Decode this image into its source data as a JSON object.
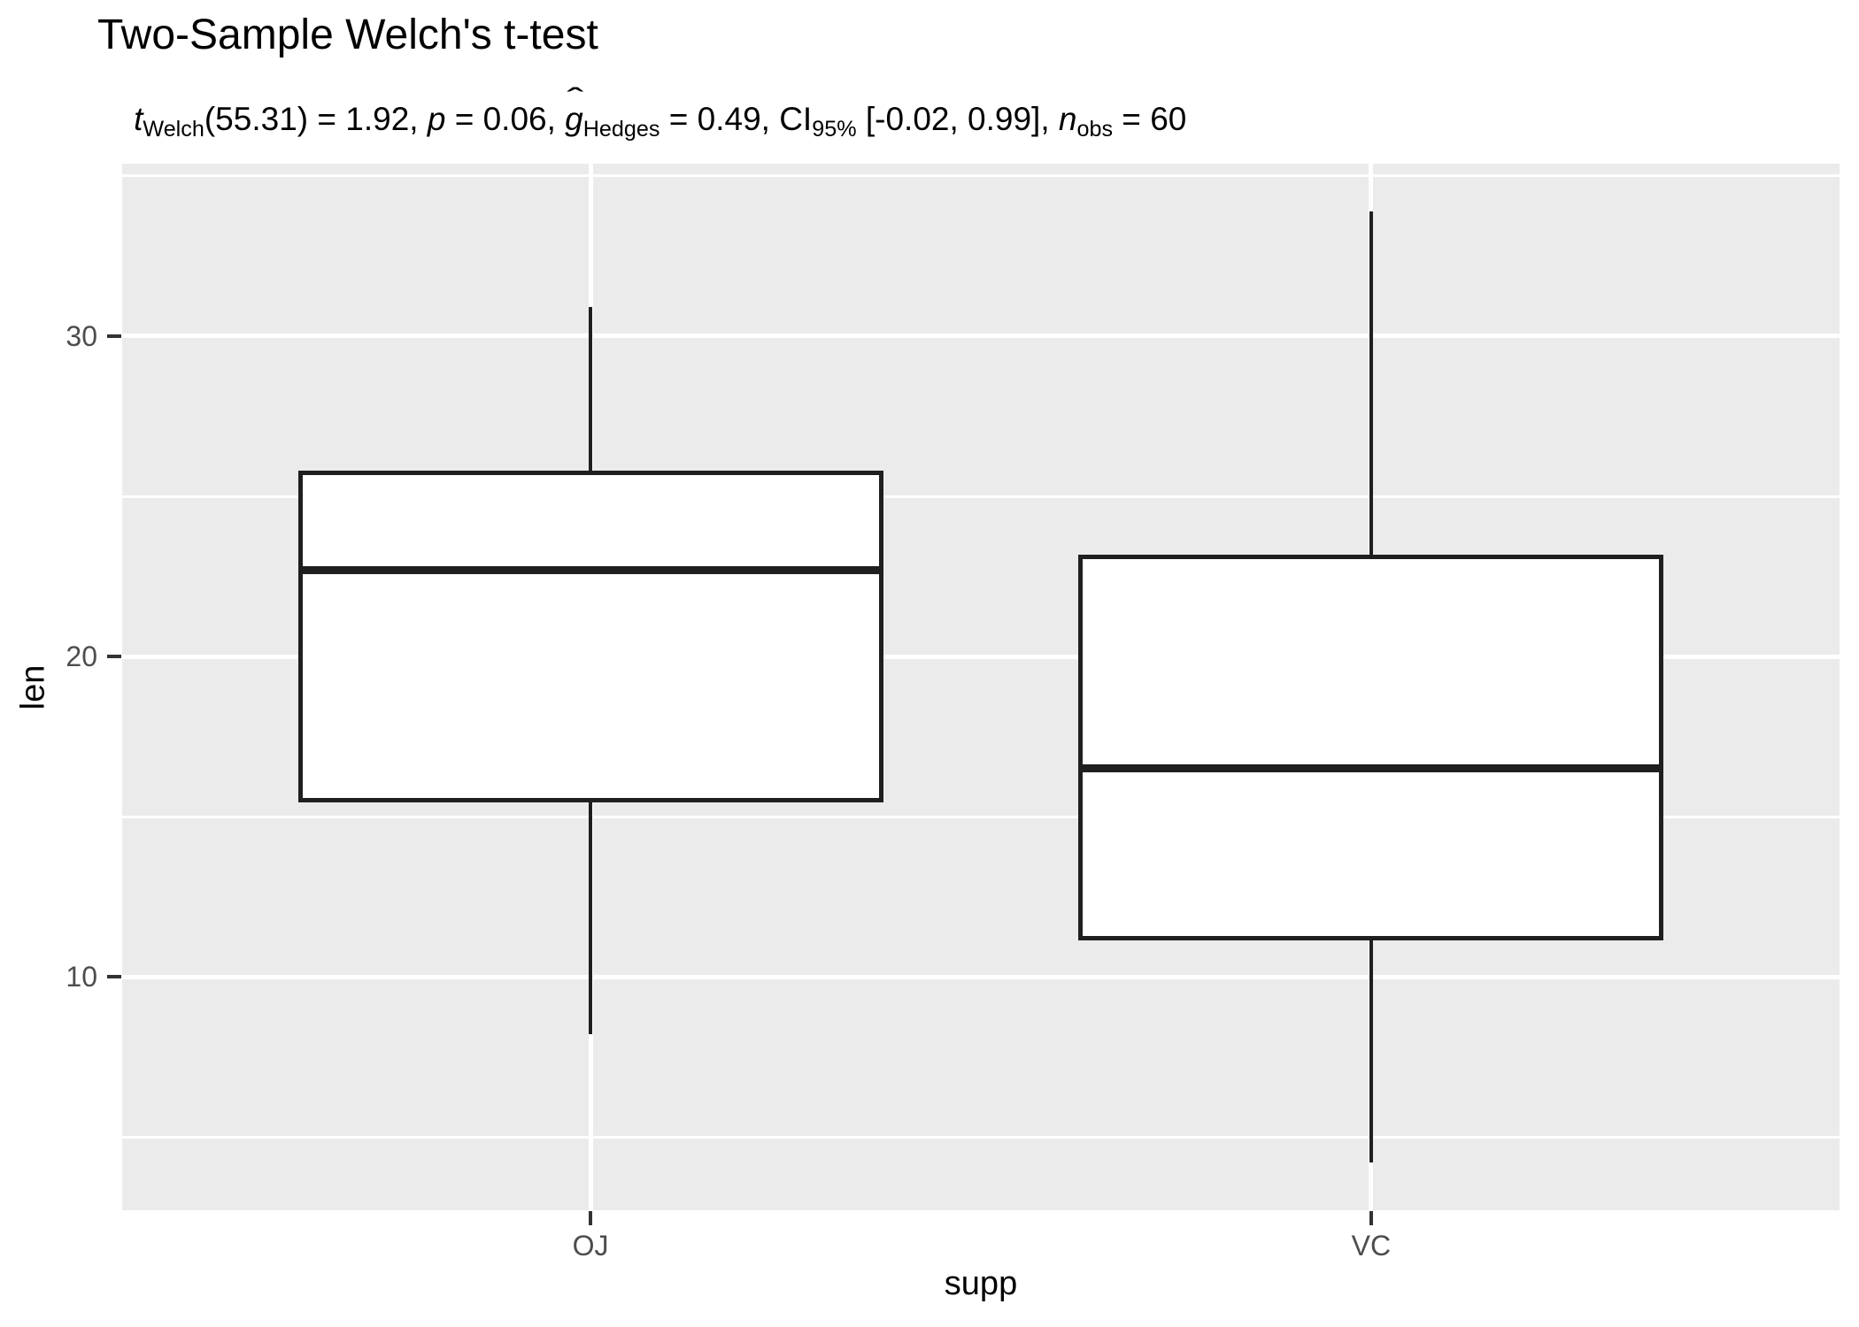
{
  "figure": {
    "title": "Two-Sample Welch's t-test",
    "subtitle_parts": {
      "t": "t",
      "t_sub": "Welch",
      "t_rest": "(55.31) = 1.92, ",
      "p": "p",
      "p_rest": " = 0.06, ",
      "g": "g",
      "g_hat": "ˆ",
      "g_sub": "Hedges",
      "g_rest": " = 0.49, CI",
      "ci_sub": "95%",
      "ci_rest": " [-0.02, 0.99], ",
      "n": "n",
      "n_sub": "obs",
      "n_rest": " = 60"
    }
  },
  "chart_data": {
    "type": "boxplot",
    "title": "Two-Sample Welch's t-test",
    "subtitle": "t Welch(55.31) = 1.92, p = 0.06, g^ Hedges = 0.49, CI 95% [-0.02, 0.99], n obs = 60",
    "xlabel": "supp",
    "ylabel": "len",
    "categories": [
      "OJ",
      "VC"
    ],
    "series": [
      {
        "name": "OJ",
        "whisker_low": 8.2,
        "q1": 15.525,
        "median": 22.7,
        "q3": 25.725,
        "whisker_high": 30.9
      },
      {
        "name": "VC",
        "whisker_low": 4.2,
        "q1": 11.2,
        "median": 16.5,
        "q3": 23.1,
        "whisker_high": 33.9
      }
    ],
    "ylim": [
      2.715,
      35.385
    ],
    "y_major_ticks": [
      10,
      20,
      30
    ],
    "y_minor_gridlines": [
      5,
      15,
      25,
      35
    ],
    "grid": "on",
    "legend": "none",
    "colors": {
      "panel_bg": "#EBEBEB",
      "gridline": "#FFFFFF",
      "box_line": "#1F1F1F",
      "box_fill": "#FFFFFF",
      "tick_label": "#4D4D4D",
      "axis_title": "#000000",
      "tick_mark": "#333333"
    }
  }
}
